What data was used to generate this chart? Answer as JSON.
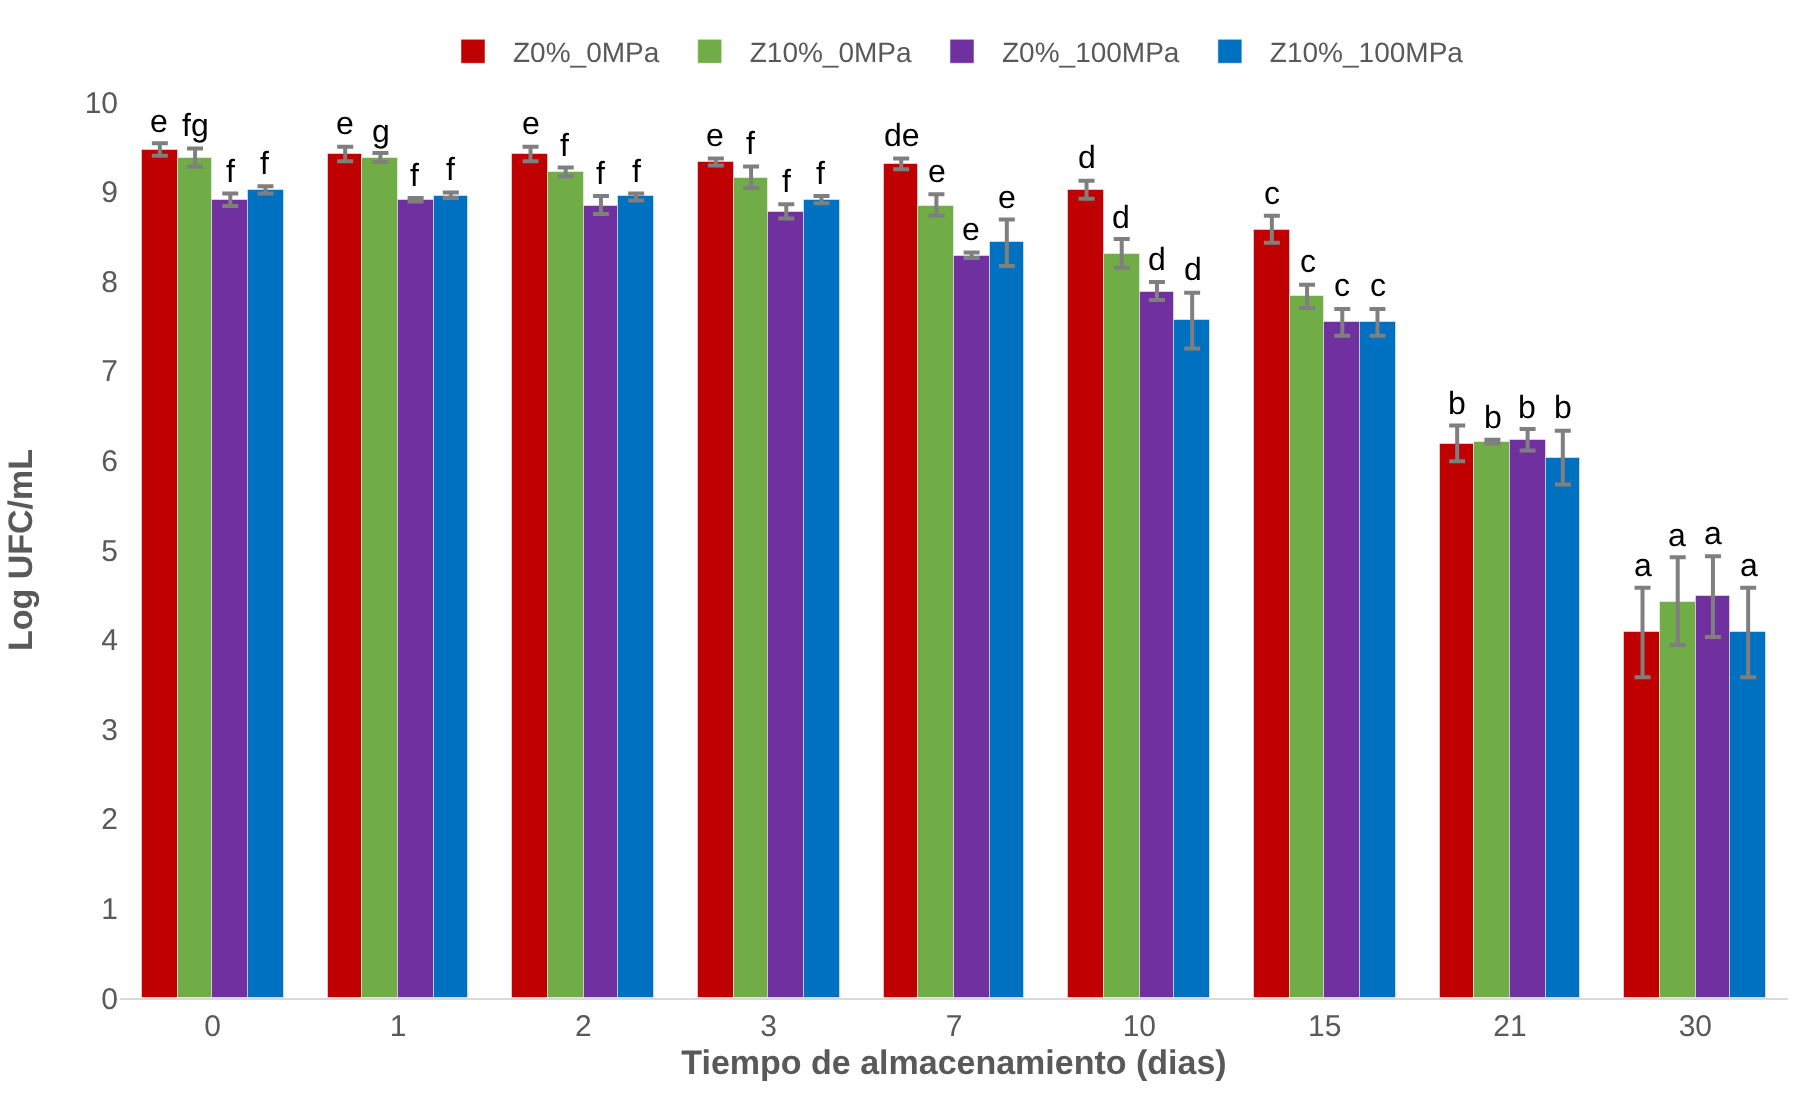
{
  "chart_data": {
    "type": "bar",
    "xlabel": "Tiempo de almacenamiento (dias)",
    "ylabel": "Log UFC/mL",
    "categories": [
      "0",
      "1",
      "2",
      "3",
      "7",
      "10",
      "15",
      "21",
      "30"
    ],
    "series": [
      {
        "name": "Z0%_0MPa",
        "color": "#c00000",
        "values": [
          9.47,
          9.42,
          9.42,
          9.33,
          9.31,
          9.02,
          8.58,
          6.19,
          4.08
        ],
        "errors": [
          0.07,
          0.08,
          0.08,
          0.04,
          0.06,
          0.1,
          0.15,
          0.2,
          0.5
        ],
        "value_labels": [
          "e",
          "e",
          "e",
          "e",
          "de",
          "d",
          "c",
          "b",
          "a"
        ]
      },
      {
        "name": "Z10%_0MPa",
        "color": "#70ad47",
        "values": [
          9.38,
          9.38,
          9.22,
          9.16,
          8.85,
          8.31,
          7.83,
          6.21,
          4.43
        ],
        "errors": [
          0.1,
          0.05,
          0.05,
          0.12,
          0.12,
          0.16,
          0.13,
          0.02,
          0.49
        ],
        "value_labels": [
          "fg",
          "g",
          "f",
          "f",
          "e",
          "d",
          "c",
          "b",
          "a"
        ]
      },
      {
        "name": "Z0%_100MPa",
        "color": "#7030a0",
        "values": [
          8.91,
          8.91,
          8.85,
          8.78,
          8.29,
          7.89,
          7.54,
          6.23,
          4.48
        ],
        "errors": [
          0.07,
          0.02,
          0.1,
          0.08,
          0.03,
          0.1,
          0.15,
          0.12,
          0.45
        ],
        "value_labels": [
          "f",
          "f",
          "f",
          "f",
          "e",
          "d",
          "c",
          "b",
          "a"
        ]
      },
      {
        "name": "Z10%_100MPa",
        "color": "#0070c0",
        "values": [
          9.02,
          8.96,
          8.94,
          8.91,
          8.43,
          7.56,
          7.54,
          6.03,
          4.08
        ],
        "errors": [
          0.04,
          0.03,
          0.04,
          0.04,
          0.26,
          0.31,
          0.15,
          0.3,
          0.5
        ],
        "value_labels": [
          "f",
          "f",
          "f",
          "f",
          "e",
          "d",
          "c",
          "b",
          "a"
        ]
      }
    ],
    "ylim": [
      0,
      10
    ],
    "yticks": [
      0,
      1,
      2,
      3,
      4,
      5,
      6,
      7,
      8,
      9,
      10
    ],
    "grid": false,
    "legend": "top"
  }
}
